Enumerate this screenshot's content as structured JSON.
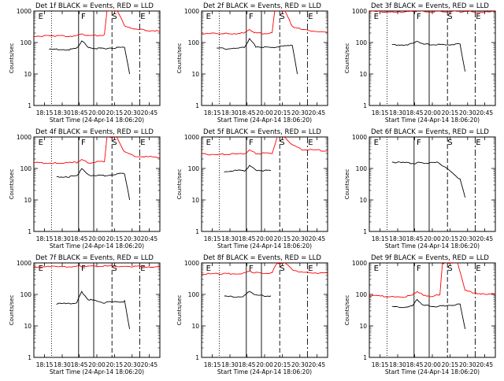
{
  "figure": {
    "xlabel_text": "Start Time (24-Apr-14 18:06:20)",
    "ylabel_text": "Counts/sec",
    "x_tick_labels": [
      "18:15",
      "18:30",
      "18:45",
      "20:00",
      "20:15",
      "20:30",
      "20:45"
    ],
    "y_tick_labels": [
      "1",
      "10",
      "100",
      "1000"
    ],
    "marker_labels": [
      "E",
      "F",
      "S",
      "E"
    ],
    "colors": {
      "events": "#000000",
      "lld": "#ff0000",
      "frame": "#000000"
    }
  },
  "chart_data": [
    {
      "type": "line",
      "title": "Det 1f BLACK = Events, RED = LLD",
      "xlabel": "Start Time (24-Apr-14 18:06:20)",
      "ylabel": "Counts/sec",
      "y_scale": "log",
      "ylim": [
        1,
        1000
      ],
      "x_ticks": [
        "18:15",
        "18:30",
        "18:45",
        "20:00",
        "20:15",
        "20:30",
        "20:45"
      ],
      "series": [
        {
          "name": "BLACK = Events",
          "color": "#000000",
          "x": [
            0.12,
            0.18,
            0.28,
            0.34,
            0.38,
            0.43,
            0.5,
            0.55,
            0.72,
            0.76
          ],
          "y": [
            60,
            60,
            60,
            65,
            115,
            70,
            65,
            65,
            70,
            10
          ]
        },
        {
          "name": "RED = LLD",
          "color": "#ff0000",
          "x": [
            0.0,
            0.18,
            0.28,
            0.34,
            0.38,
            0.43,
            0.5,
            0.56,
            0.58,
            0.6,
            0.64,
            0.66,
            0.72,
            0.8,
            1.0
          ],
          "y": [
            160,
            160,
            160,
            165,
            190,
            165,
            170,
            175,
            1000,
            1000,
            1000,
            1000,
            350,
            260,
            230
          ]
        }
      ]
    },
    {
      "type": "line",
      "title": "Det 2f BLACK = Events, RED = LLD",
      "xlabel": "Start Time (24-Apr-14 18:06:20)",
      "ylabel": "Counts/sec",
      "y_scale": "log",
      "ylim": [
        1,
        1000
      ],
      "x_ticks": [
        "18:15",
        "18:30",
        "18:45",
        "20:00",
        "20:15",
        "20:30",
        "20:45"
      ],
      "series": [
        {
          "name": "BLACK = Events",
          "color": "#000000",
          "x": [
            0.12,
            0.18,
            0.28,
            0.34,
            0.38,
            0.43,
            0.5,
            0.55,
            0.72,
            0.76
          ],
          "y": [
            65,
            65,
            65,
            70,
            130,
            75,
            70,
            70,
            80,
            10
          ]
        },
        {
          "name": "RED = LLD",
          "color": "#ff0000",
          "x": [
            0.0,
            0.18,
            0.28,
            0.34,
            0.38,
            0.43,
            0.5,
            0.56,
            0.58,
            0.6,
            0.64,
            0.66,
            0.72,
            0.8,
            1.0
          ],
          "y": [
            190,
            190,
            195,
            200,
            260,
            200,
            195,
            200,
            1000,
            1000,
            1000,
            1000,
            330,
            250,
            210
          ]
        }
      ]
    },
    {
      "type": "line",
      "title": "Det 3f BLACK = Events, RED = LLD",
      "xlabel": "Start Time (24-Apr-14 18:06:20)",
      "ylabel": "Counts/sec",
      "y_scale": "log",
      "ylim": [
        1,
        1000
      ],
      "x_ticks": [
        "18:15",
        "18:30",
        "18:45",
        "20:00",
        "20:15",
        "20:30",
        "20:45"
      ],
      "series": [
        {
          "name": "BLACK = Events",
          "color": "#000000",
          "x": [
            0.18,
            0.28,
            0.34,
            0.38,
            0.43,
            0.5,
            0.55,
            0.72,
            0.76
          ],
          "y": [
            85,
            85,
            90,
            110,
            88,
            85,
            85,
            90,
            12
          ]
        },
        {
          "name": "RED = LLD",
          "color": "#ff0000",
          "x": [
            0.0,
            0.18,
            0.28,
            0.34,
            0.38,
            0.43,
            0.5,
            0.55,
            0.72,
            0.8,
            1.0
          ],
          "y": [
            950,
            950,
            950,
            960,
            1000,
            960,
            960,
            960,
            950,
            940,
            930
          ]
        }
      ]
    },
    {
      "type": "line",
      "title": "Det 4f BLACK = Events, RED = LLD",
      "xlabel": "Start Time (24-Apr-14 18:06:20)",
      "ylabel": "Counts/sec",
      "y_scale": "log",
      "ylim": [
        1,
        1000
      ],
      "x_ticks": [
        "18:15",
        "18:30",
        "18:45",
        "20:00",
        "20:15",
        "20:30",
        "20:45"
      ],
      "series": [
        {
          "name": "BLACK = Events",
          "color": "#000000",
          "x": [
            0.18,
            0.28,
            0.34,
            0.38,
            0.43,
            0.5,
            0.55,
            0.72,
            0.76
          ],
          "y": [
            55,
            55,
            58,
            100,
            62,
            60,
            60,
            70,
            10
          ]
        },
        {
          "name": "RED = LLD",
          "color": "#ff0000",
          "x": [
            0.0,
            0.18,
            0.28,
            0.34,
            0.38,
            0.43,
            0.5,
            0.56,
            0.58,
            0.6,
            0.64,
            0.66,
            0.72,
            0.8,
            1.0
          ],
          "y": [
            150,
            150,
            150,
            155,
            190,
            150,
            160,
            165,
            1000,
            1000,
            1000,
            1000,
            320,
            250,
            220
          ]
        }
      ]
    },
    {
      "type": "line",
      "title": "Det 5f BLACK = Events, RED = LLD",
      "xlabel": "Start Time (24-Apr-14 18:06:20)",
      "ylabel": "Counts/sec",
      "y_scale": "log",
      "ylim": [
        1,
        1000
      ],
      "x_ticks": [
        "18:15",
        "18:30",
        "18:45",
        "20:00",
        "20:15",
        "20:30",
        "20:45"
      ],
      "series": [
        {
          "name": "BLACK = Events",
          "color": "#000000",
          "x": [
            0.18,
            0.28,
            0.34,
            0.38,
            0.43,
            0.5,
            0.55
          ],
          "y": [
            80,
            85,
            85,
            120,
            90,
            85,
            85
          ]
        },
        {
          "name": "RED = LLD",
          "color": "#ff0000",
          "x": [
            0.0,
            0.18,
            0.28,
            0.34,
            0.38,
            0.43,
            0.5,
            0.56,
            0.6,
            0.66,
            0.72,
            0.8,
            1.0
          ],
          "y": [
            280,
            280,
            285,
            290,
            380,
            300,
            300,
            310,
            1000,
            1000,
            560,
            400,
            360
          ]
        }
      ]
    },
    {
      "type": "line",
      "title": "Det 6f BLACK = Events, RED = LLD",
      "xlabel": "Start Time (24-Apr-14 18:06:20)",
      "ylabel": "Counts/sec",
      "y_scale": "log",
      "ylim": [
        1,
        1000
      ],
      "x_ticks": [
        "18:15",
        "18:30",
        "18:45",
        "20:00",
        "20:15",
        "20:30",
        "20:45"
      ],
      "series": [
        {
          "name": "BLACK = Events",
          "color": "#000000",
          "x": [
            0.18,
            0.28,
            0.34,
            0.38,
            0.43,
            0.5,
            0.55,
            0.72,
            0.76
          ],
          "y": [
            160,
            150,
            145,
            150,
            150,
            150,
            155,
            45,
            12
          ]
        }
      ]
    },
    {
      "type": "line",
      "title": "Det 7f BLACK = Events, RED = LLD",
      "xlabel": "Start Time (24-Apr-14 18:06:20)",
      "ylabel": "Counts/sec",
      "y_scale": "log",
      "ylim": [
        1,
        1000
      ],
      "x_ticks": [
        "18:15",
        "18:30",
        "18:45",
        "20:00",
        "20:15",
        "20:30",
        "20:45"
      ],
      "series": [
        {
          "name": "BLACK = Events",
          "color": "#000000",
          "x": [
            0.18,
            0.28,
            0.34,
            0.38,
            0.43,
            0.5,
            0.55,
            0.72,
            0.76
          ],
          "y": [
            50,
            50,
            55,
            120,
            70,
            60,
            55,
            60,
            8
          ]
        },
        {
          "name": "RED = LLD",
          "color": "#ff0000",
          "x": [
            0.0,
            0.18,
            0.28,
            0.34,
            0.38,
            0.43,
            0.5,
            0.56,
            0.72,
            0.8,
            1.0
          ],
          "y": [
            750,
            750,
            760,
            780,
            800,
            780,
            780,
            790,
            800,
            760,
            760
          ]
        }
      ]
    },
    {
      "type": "line",
      "title": "Det 8f BLACK = Events, RED = LLD",
      "xlabel": "Start Time (24-Apr-14 18:06:20)",
      "ylabel": "Counts/sec",
      "y_scale": "log",
      "ylim": [
        1,
        1000
      ],
      "x_ticks": [
        "18:15",
        "18:30",
        "18:45",
        "20:00",
        "20:15",
        "20:30",
        "20:45"
      ],
      "series": [
        {
          "name": "BLACK = Events",
          "color": "#000000",
          "x": [
            0.18,
            0.28,
            0.34,
            0.38,
            0.43,
            0.5,
            0.55
          ],
          "y": [
            85,
            85,
            90,
            130,
            95,
            90,
            90
          ]
        },
        {
          "name": "RED = LLD",
          "color": "#ff0000",
          "x": [
            0.0,
            0.18,
            0.28,
            0.34,
            0.38,
            0.43,
            0.5,
            0.56,
            0.6,
            0.66,
            0.72,
            0.8,
            1.0
          ],
          "y": [
            450,
            450,
            460,
            470,
            560,
            480,
            480,
            490,
            1000,
            1000,
            620,
            500,
            470
          ]
        }
      ]
    },
    {
      "type": "line",
      "title": "Det 9f BLACK = Events, RED = LLD",
      "xlabel": "Start Time (24-Apr-14 18:06:20)",
      "ylabel": "Counts/sec",
      "y_scale": "log",
      "ylim": [
        1,
        1000
      ],
      "x_ticks": [
        "18:15",
        "18:30",
        "18:45",
        "20:00",
        "20:15",
        "20:30",
        "20:45"
      ],
      "series": [
        {
          "name": "BLACK = Events",
          "color": "#000000",
          "x": [
            0.18,
            0.28,
            0.34,
            0.38,
            0.43,
            0.5,
            0.55,
            0.72,
            0.76
          ],
          "y": [
            40,
            40,
            42,
            70,
            45,
            42,
            42,
            50,
            8
          ]
        },
        {
          "name": "RED = LLD",
          "color": "#ff0000",
          "x": [
            0.0,
            0.18,
            0.28,
            0.34,
            0.38,
            0.43,
            0.5,
            0.56,
            0.58,
            0.6,
            0.64,
            0.7,
            0.76,
            0.82,
            1.0
          ],
          "y": [
            90,
            85,
            85,
            90,
            130,
            90,
            90,
            95,
            1000,
            1000,
            1000,
            1000,
            140,
            110,
            100
          ]
        }
      ]
    }
  ]
}
